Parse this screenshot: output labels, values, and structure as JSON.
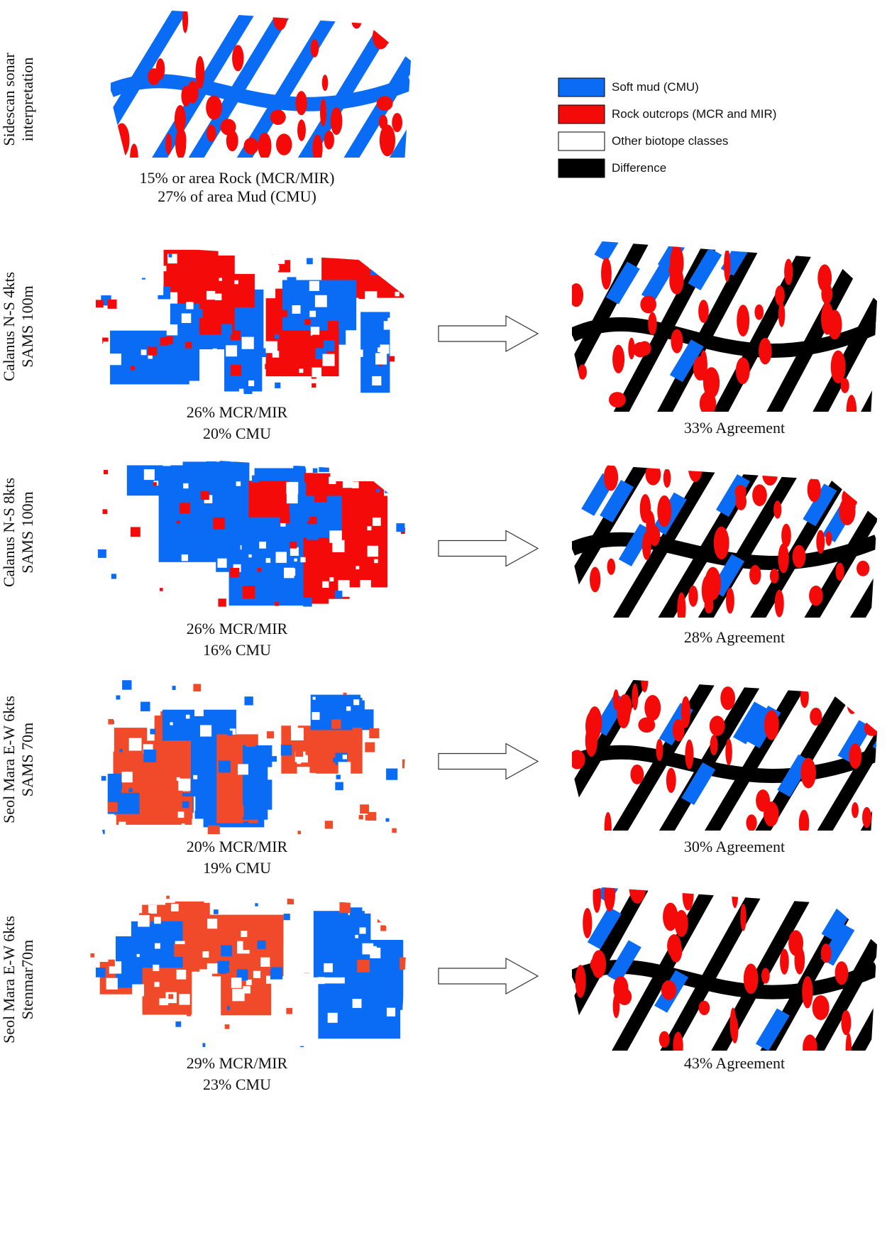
{
  "reference": {
    "side_label": [
      "Sidescan sonar",
      "interpretation"
    ],
    "caption": [
      "15% or area Rock (MCR/MIR)",
      "27% of area Mud (CMU)"
    ]
  },
  "legend": [
    {
      "label": "Soft mud (CMU)",
      "color": "#0a6cf5"
    },
    {
      "label": "Rock outcrops (MCR and MIR)",
      "color": "#f50a0a"
    },
    {
      "label": "Other biotope classes",
      "color": "#ffffff"
    },
    {
      "label": "Difference",
      "color": "#000000"
    }
  ],
  "rows": [
    {
      "side_label": [
        "Calanus N-S 4kts",
        "SAMS 100m"
      ],
      "caption": [
        "26% MCR/MIR",
        "20% CMU"
      ],
      "agreement": "33% Agreement"
    },
    {
      "side_label": [
        "Calanus N-S 8kts",
        "SAMS 100m"
      ],
      "caption": [
        "26% MCR/MIR",
        "16% CMU"
      ],
      "agreement": "28% Agreement"
    },
    {
      "side_label": [
        "Seol Mara E-W 6kts",
        "SAMS 70m"
      ],
      "caption": [
        "20% MCR/MIR",
        "19% CMU"
      ],
      "agreement": "30% Agreement"
    },
    {
      "side_label": [
        "Seol Mara E-W 6kts",
        "Stenmar70m"
      ],
      "caption": [
        "29% MCR/MIR",
        "23% CMU"
      ],
      "agreement": "43% Agreement"
    }
  ]
}
